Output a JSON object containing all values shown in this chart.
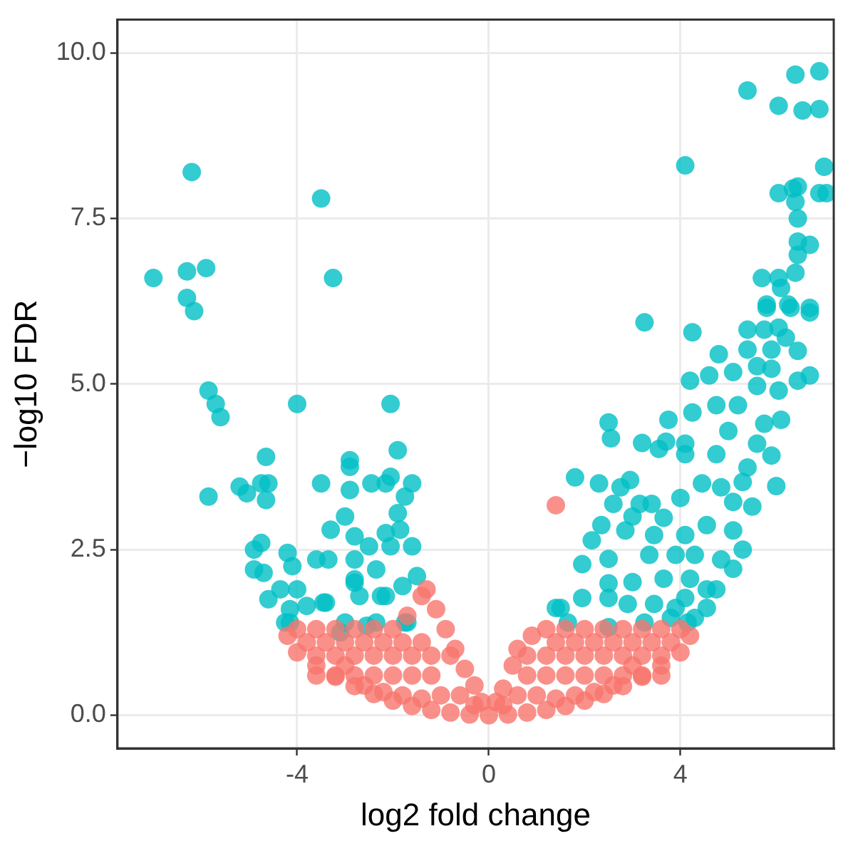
{
  "chart_data": {
    "type": "scatter",
    "xlabel": "log2 fold change",
    "ylabel": "−log10 FDR",
    "xlim": [
      -7.75,
      7.2
    ],
    "ylim": [
      -0.5,
      10.5
    ],
    "xticks": [
      -4,
      0,
      4
    ],
    "yticks": [
      {
        "value": 0,
        "label": "0.0"
      },
      {
        "value": 2.5,
        "label": "2.5"
      },
      {
        "value": 5,
        "label": "5.0"
      },
      {
        "value": 7.5,
        "label": "7.5"
      },
      {
        "value": 10,
        "label": "10.0"
      }
    ],
    "grid": true,
    "marker": "circle",
    "series": [
      {
        "color": "#f8766d",
        "x": [
          -4.2,
          -4.0,
          -3.6,
          -3.2,
          -2.8,
          -2.4,
          -2.0,
          -1.6,
          -1.2,
          -0.8,
          -0.4,
          0,
          0.4,
          0.8,
          1.2,
          1.6,
          2.0,
          2.4,
          2.8,
          3.2,
          3.6,
          4.0,
          4.2,
          -4.0,
          -3.6,
          -3.2,
          -2.8,
          -2.4,
          -2.0,
          -1.7,
          -1.4,
          -1.3,
          -1.1,
          -0.9,
          -0.7,
          -0.5,
          -0.3,
          -0.15,
          0.15,
          0.3,
          0.5,
          0.6,
          0.9,
          1.2,
          1.6,
          2.0,
          2.4,
          2.8,
          3.2,
          3.6,
          4.0,
          1.4,
          -3.6,
          -3.2,
          -2.8,
          -2.4,
          -2.0,
          -1.6,
          -1.2,
          -0.8,
          -3.6,
          -3.2,
          -2.8,
          -2.4,
          -2.0,
          -1.6,
          -1.2,
          0.8,
          1.2,
          1.6,
          2.0,
          2.4,
          2.8,
          3.2,
          3.6,
          0.8,
          1.2,
          1.6,
          2.0,
          2.4,
          2.8,
          3.2,
          3.6,
          -0.6,
          -0.3,
          0.3,
          0.6,
          -3.8,
          -3.4,
          -3.0,
          -2.6,
          -2.2,
          -1.8,
          -1.4,
          1.4,
          1.8,
          2.2,
          2.6,
          3.0,
          3.4,
          3.8,
          -3.0,
          -2.6,
          -2.2,
          -1.8,
          -1.4,
          -1.0,
          1.0,
          1.4,
          1.8,
          2.2,
          2.6,
          3.0
        ],
        "values": [
          1.2,
          0.95,
          0.75,
          0.58,
          0.44,
          0.32,
          0.22,
          0.14,
          0.08,
          0.04,
          0.01,
          0,
          0.01,
          0.04,
          0.08,
          0.14,
          0.22,
          0.32,
          0.44,
          0.58,
          0.75,
          0.95,
          1.2,
          1.3,
          1.3,
          1.3,
          1.3,
          1.3,
          1.3,
          1.5,
          1.8,
          1.9,
          1.6,
          1.3,
          1.0,
          0.7,
          0.45,
          0.2,
          0.2,
          0.4,
          0.75,
          1.0,
          1.2,
          1.3,
          1.3,
          1.3,
          1.3,
          1.3,
          1.3,
          1.3,
          1.3,
          3.17,
          0.9,
          0.9,
          0.9,
          0.9,
          0.9,
          0.9,
          0.9,
          0.9,
          0.6,
          0.6,
          0.6,
          0.6,
          0.6,
          0.6,
          0.6,
          0.9,
          0.9,
          0.9,
          0.9,
          0.9,
          0.9,
          0.9,
          0.9,
          0.6,
          0.6,
          0.6,
          0.6,
          0.6,
          0.6,
          0.6,
          0.6,
          0.3,
          0.15,
          0.15,
          0.3,
          1.1,
          1.1,
          1.1,
          1.1,
          1.1,
          1.1,
          1.1,
          1.1,
          1.1,
          1.1,
          1.1,
          1.1,
          1.1,
          1.1,
          0.75,
          0.45,
          0.35,
          0.3,
          0.25,
          0.3,
          0.3,
          0.25,
          0.3,
          0.35,
          0.45,
          0.75
        ]
      },
      {
        "color": "#00bfc4",
        "x": [
          -7.0,
          -6.2,
          -6.3,
          -5.9,
          -6.3,
          -6.15,
          -5.85,
          -5.7,
          -5.6,
          -5.85,
          -3.5,
          -3.25,
          -4.0,
          -2.05,
          -4.6,
          -5.2,
          -5.05,
          -4.65,
          -4.75,
          -2.9,
          -2.45,
          -4.65,
          -3.5,
          -2.9,
          -2.9,
          -3.0,
          -3.3,
          -2.15,
          -2.05,
          -1.6,
          -1.75,
          -1.9,
          -1.9,
          -1.85,
          -2.15,
          -2.05,
          -1.6,
          -2.8,
          -2.5,
          -2.8,
          -4.75,
          -4.9,
          -4.9,
          -4.7,
          -4.2,
          -4.1,
          -4.35,
          -4.6,
          -4.0,
          -3.8,
          -3.4,
          -3.6,
          -3.35,
          -2.8,
          -2.35,
          -2.7,
          -2.25,
          -1.8,
          -1.5,
          -3.0,
          -4.25,
          -4.15,
          -2.35,
          -1.75,
          -4.15,
          -3.45,
          -2.8,
          -2.15,
          -3.1,
          -2.55,
          -1.7,
          5.4,
          6.4,
          6.9,
          6.05,
          6.55,
          6.9,
          4.1,
          7.0,
          6.05,
          6.35,
          6.45,
          6.4,
          6.9,
          7.05,
          6.45,
          6.45,
          6.7,
          6.45,
          6.4,
          5.7,
          6.05,
          6.1,
          5.8,
          6.25,
          6.7,
          3.25,
          4.25,
          5.8,
          6.3,
          6.7,
          5.4,
          5.75,
          6.05,
          5.4,
          5.9,
          6.2,
          6.45,
          4.8,
          4.6,
          4.2,
          5.1,
          5.6,
          5.9,
          5.6,
          6.05,
          6.7,
          6.45,
          4.75,
          5.2,
          4.25,
          3.75,
          2.5,
          2.55,
          3.2,
          3.55,
          3.7,
          4.1,
          4.1,
          4.75,
          5.0,
          5.75,
          6.1,
          5.9,
          5.6,
          5.4,
          5.3,
          6.0,
          1.8,
          2.3,
          2.95,
          2.75,
          2.6,
          3.15,
          3.4,
          4.0,
          4.45,
          4.85,
          5.1,
          5.5,
          3.0,
          3.65,
          2.35,
          2.85,
          3.45,
          2.15,
          4.1,
          4.55,
          5.1,
          5.3,
          1.95,
          2.5,
          3.35,
          3.9,
          4.3,
          4.85,
          5.1,
          2.5,
          3.0,
          3.65,
          4.2,
          4.75,
          4.55,
          1.5,
          1.95,
          2.5,
          2.9,
          3.45,
          3.9,
          4.1,
          2.5,
          3.25,
          3.8,
          4.3,
          4.55,
          1.4,
          1.65,
          4.15
        ],
        "values": [
          6.6,
          8.2,
          6.7,
          6.75,
          6.3,
          6.1,
          4.9,
          4.7,
          4.5,
          3.3,
          7.8,
          6.6,
          4.7,
          4.7,
          3.5,
          3.45,
          3.35,
          3.9,
          3.5,
          3.85,
          3.5,
          3.25,
          3.5,
          3.75,
          3.4,
          3.0,
          2.8,
          3.5,
          3.6,
          3.5,
          3.3,
          4.0,
          3.05,
          2.8,
          2.75,
          2.55,
          2.55,
          2.7,
          2.55,
          2.35,
          2.6,
          2.5,
          2.2,
          2.15,
          2.45,
          2.25,
          1.9,
          1.75,
          1.9,
          1.65,
          1.7,
          2.35,
          2.35,
          2.0,
          2.2,
          1.8,
          1.8,
          1.95,
          2.1,
          1.4,
          1.4,
          1.6,
          1.4,
          1.4,
          1.4,
          1.7,
          2.05,
          1.8,
          1.25,
          1.35,
          1.4,
          9.43,
          9.67,
          9.72,
          9.2,
          9.13,
          9.15,
          8.3,
          8.28,
          7.88,
          7.95,
          7.98,
          7.75,
          7.88,
          7.88,
          7.5,
          7.15,
          7.1,
          6.95,
          6.68,
          6.6,
          6.6,
          6.45,
          6.2,
          6.2,
          6.15,
          5.93,
          5.78,
          6.15,
          6.15,
          6.08,
          5.82,
          5.82,
          5.85,
          5.52,
          5.52,
          5.7,
          5.5,
          5.45,
          5.13,
          5.05,
          5.18,
          5.27,
          5.23,
          4.97,
          4.9,
          5.13,
          5.05,
          4.68,
          4.68,
          4.57,
          4.46,
          4.42,
          4.18,
          4.11,
          4.02,
          4.13,
          3.94,
          4.1,
          3.94,
          4.29,
          4.4,
          4.46,
          3.92,
          4.1,
          3.74,
          3.52,
          3.46,
          3.59,
          3.5,
          3.55,
          3.44,
          3.19,
          3.19,
          3.19,
          3.28,
          3.5,
          3.44,
          3.22,
          3.15,
          3.0,
          2.98,
          2.87,
          2.79,
          2.72,
          2.64,
          2.72,
          2.87,
          2.79,
          2.5,
          2.28,
          2.36,
          2.42,
          2.42,
          2.42,
          2.35,
          2.21,
          1.99,
          2.01,
          2.06,
          2.06,
          1.9,
          1.62,
          1.62,
          1.77,
          1.77,
          1.68,
          1.68,
          1.62,
          1.77,
          1.33,
          1.4,
          1.47,
          1.47,
          1.9,
          1.62,
          1.4,
          1.4
        ]
      }
    ]
  }
}
